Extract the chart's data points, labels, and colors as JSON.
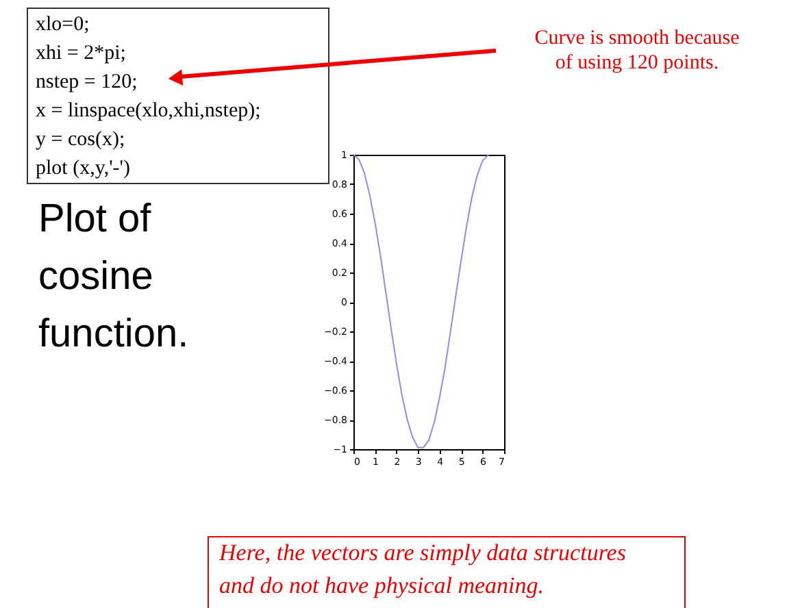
{
  "chart_data": {
    "type": "line",
    "title": "Plot of cosine function.",
    "x": [
      0,
      0.25,
      0.5,
      0.75,
      1,
      1.25,
      1.5,
      1.75,
      2,
      2.25,
      2.5,
      2.75,
      3,
      3.25,
      3.5,
      3.75,
      4,
      4.25,
      4.5,
      4.75,
      5,
      5.25,
      5.5,
      5.75,
      6,
      6.28
    ],
    "series": [
      {
        "color": "#8c8cf0",
        "values": [
          1,
          0.97,
          0.88,
          0.73,
          0.54,
          0.32,
          0.07,
          -0.18,
          -0.42,
          -0.63,
          -0.8,
          -0.92,
          -0.99,
          -0.99,
          -0.94,
          -0.82,
          -0.65,
          -0.45,
          -0.21,
          0.04,
          0.28,
          0.51,
          0.71,
          0.86,
          0.96,
          1
        ]
      }
    ],
    "xlim": [
      0,
      7
    ],
    "xticks": [
      0,
      1,
      2,
      3,
      4,
      5,
      6,
      7
    ],
    "ylim": [
      -1,
      1
    ],
    "yticks": [
      -1,
      -0.8,
      -0.6,
      -0.4,
      -0.2,
      0,
      0.2,
      0.4,
      0.6,
      0.8,
      1
    ],
    "grid": false,
    "line_style": "solid",
    "marker": "none",
    "annotations": [
      "xlo=0;\nxhi = 2*pi;\nnstep = 120;\nx = linspace(xlo,xhi,nstep);\ny = cos(x);\nplot (x,y,'-')",
      "Curve is smooth because of using 120 points.",
      "Here, the vectors are simply data structures and do not have physical meaning."
    ]
  }
}
